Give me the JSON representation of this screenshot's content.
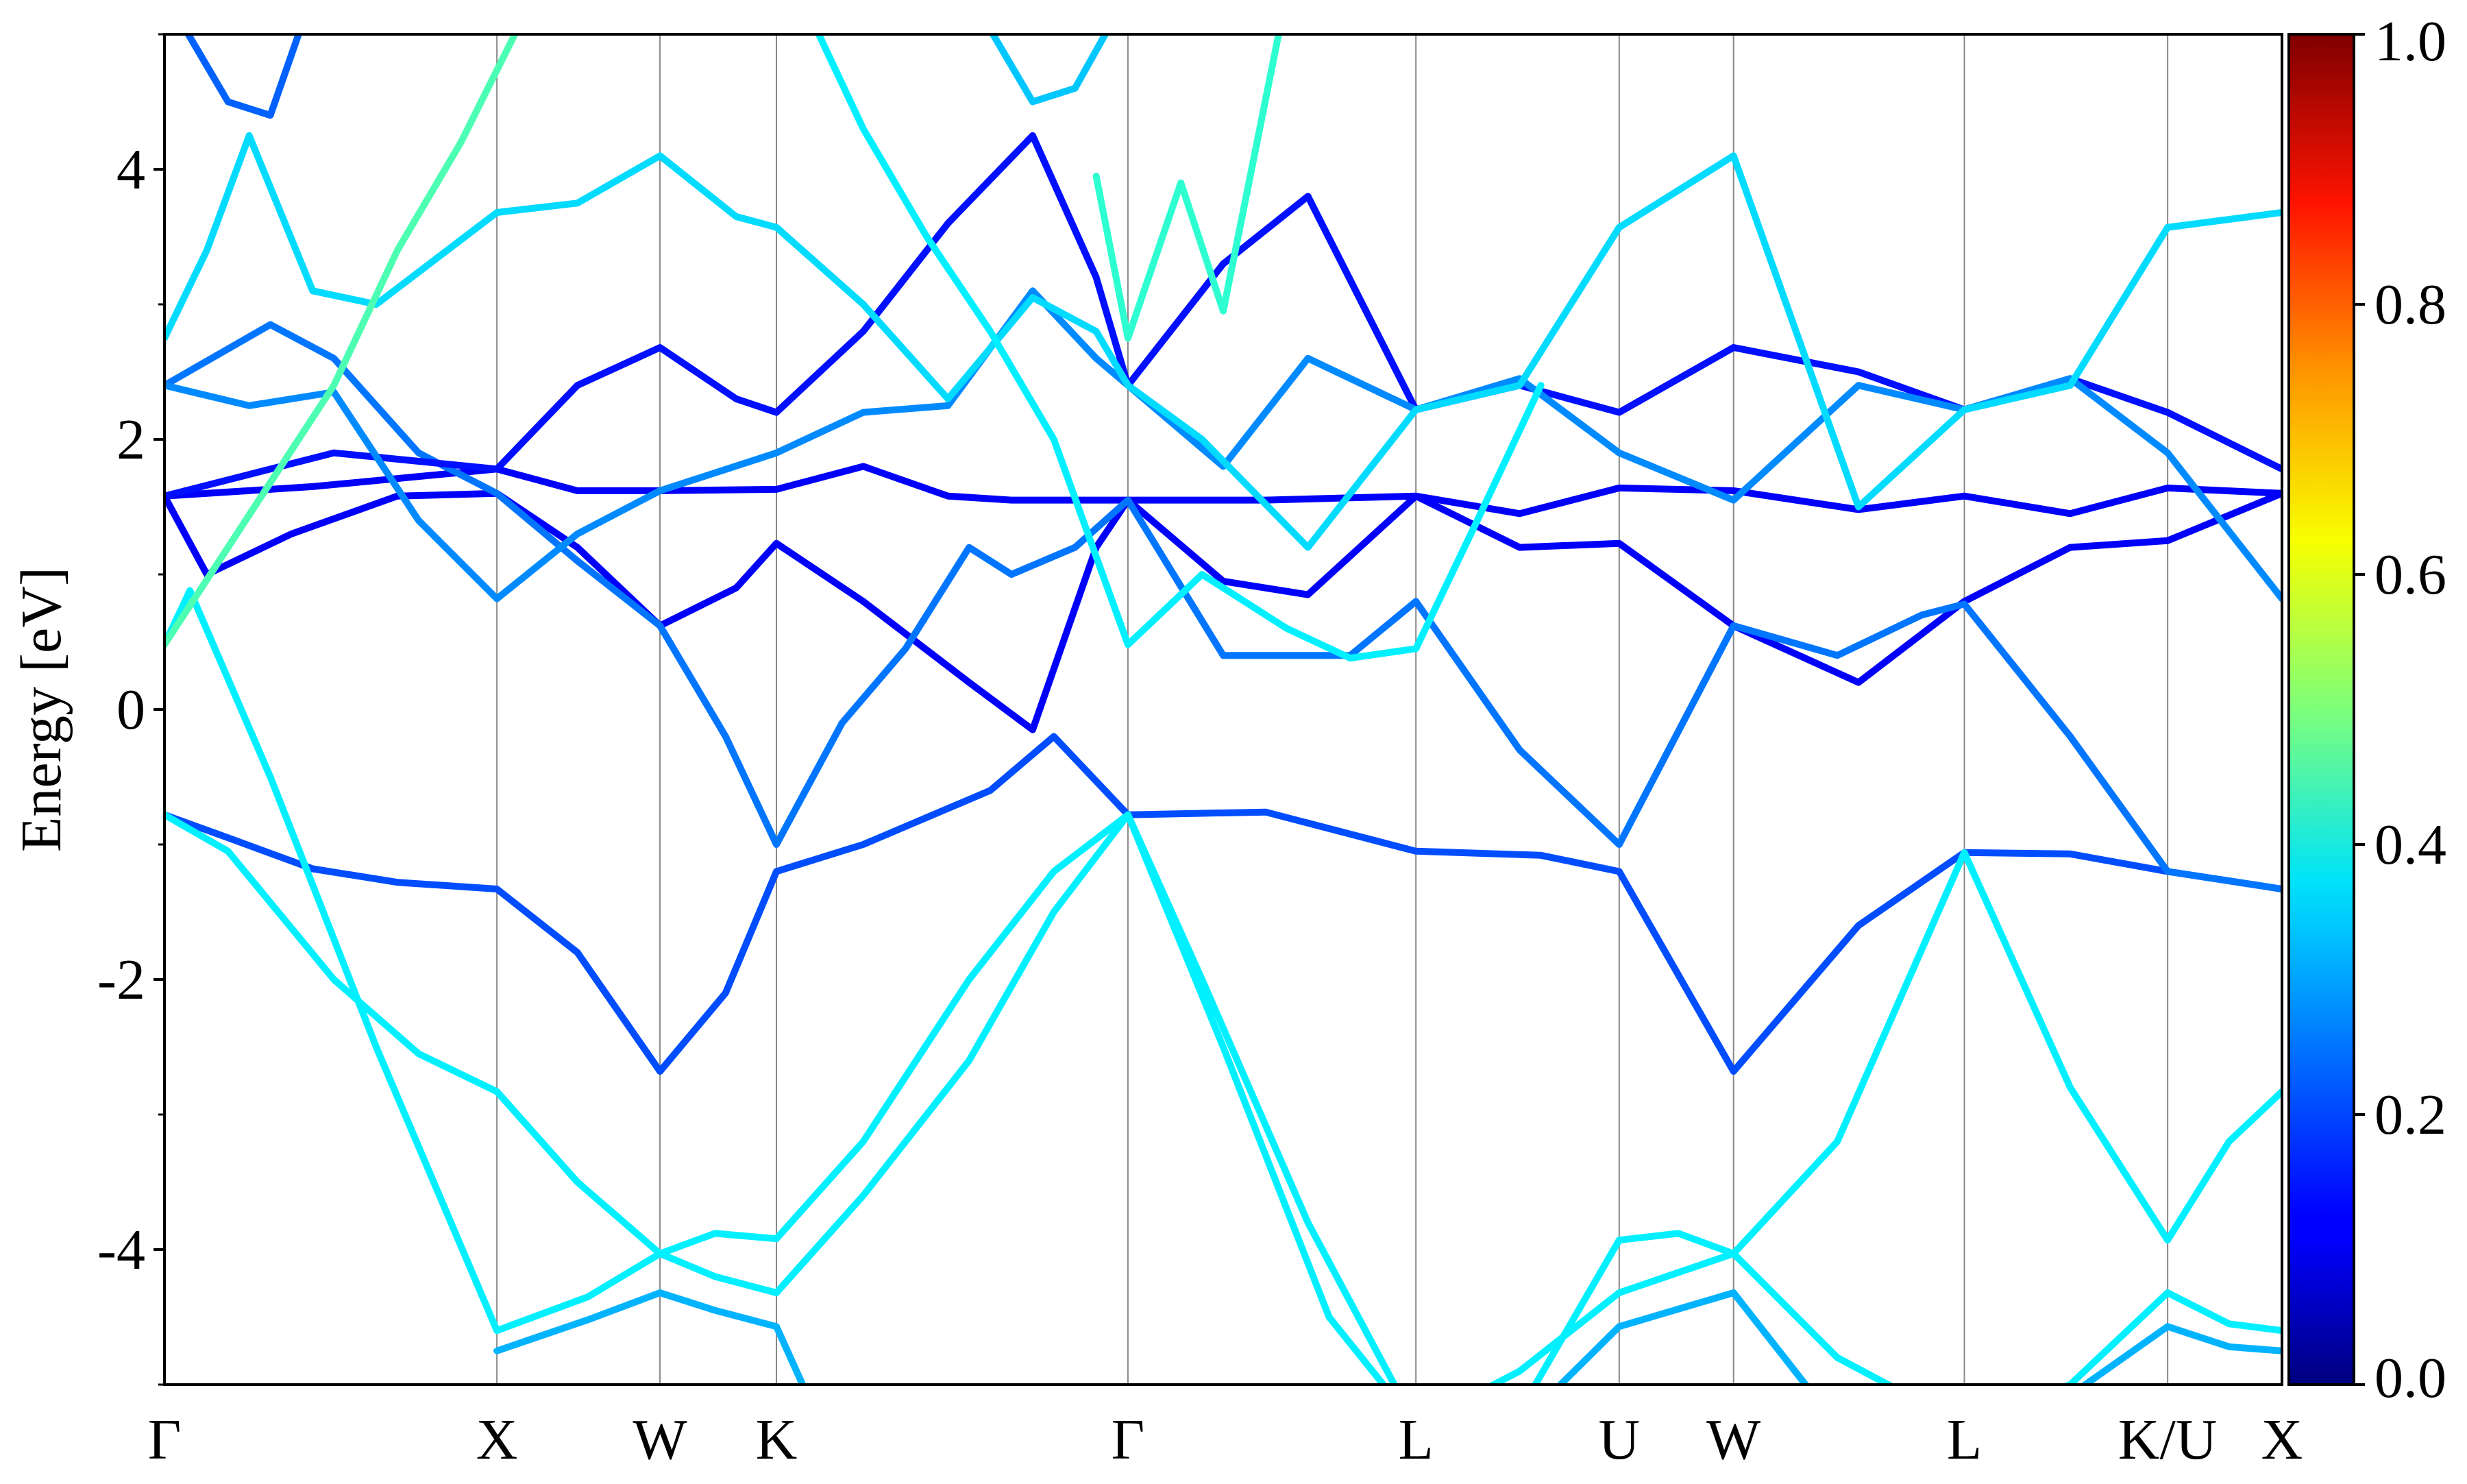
{
  "chart_data": {
    "type": "line",
    "title": "",
    "xlabel": "",
    "ylabel": "Energy [eV]",
    "ylim": [
      -5,
      5
    ],
    "grid": false,
    "legend": "none",
    "high_symbol_points": [
      {
        "label": "Γ",
        "k": 0.0
      },
      {
        "label": "X",
        "k": 0.157
      },
      {
        "label": "W",
        "k": 0.234
      },
      {
        "label": "K",
        "k": 0.289
      },
      {
        "label": "Γ",
        "k": 0.455
      },
      {
        "label": "L",
        "k": 0.591
      },
      {
        "label": "U",
        "k": 0.687
      },
      {
        "label": "W",
        "k": 0.741
      },
      {
        "label": "L",
        "k": 0.85
      },
      {
        "label": "K/U",
        "k": 0.946
      },
      {
        "label": "X",
        "k": 1.0
      }
    ],
    "y_ticks": [
      4,
      2,
      0,
      -2,
      -4
    ],
    "y_tick_labels": [
      "4",
      "2",
      "0",
      "-2",
      "-4"
    ],
    "colorbar": {
      "colormap": "jet",
      "range": [
        0.0,
        1.0
      ],
      "ticks": [
        1.0,
        0.8,
        0.6,
        0.4,
        0.2,
        0.0
      ],
      "tick_labels": [
        "1.0",
        "0.8",
        "0.6",
        "0.4",
        "0.2",
        "0.0"
      ]
    },
    "series": [
      {
        "w": 0.2,
        "points": [
          [
            0.0,
            -0.78
          ],
          [
            0.03,
            -0.95
          ],
          [
            0.07,
            -1.18
          ],
          [
            0.11,
            -1.28
          ],
          [
            0.157,
            -1.33
          ],
          [
            0.195,
            -1.8
          ],
          [
            0.234,
            -2.68
          ],
          [
            0.265,
            -2.1
          ],
          [
            0.289,
            -1.2
          ],
          [
            0.33,
            -1.0
          ],
          [
            0.39,
            -0.6
          ],
          [
            0.42,
            -0.2
          ],
          [
            0.455,
            -0.78
          ],
          [
            0.52,
            -0.76
          ],
          [
            0.591,
            -1.05
          ],
          [
            0.65,
            -1.08
          ],
          [
            0.687,
            -1.2
          ],
          [
            0.741,
            -2.68
          ],
          [
            0.8,
            -1.6
          ],
          [
            0.85,
            -1.06
          ],
          [
            0.9,
            -1.07
          ],
          [
            0.946,
            -1.2
          ],
          [
            1.0,
            -1.33
          ]
        ]
      },
      {
        "w": 0.36,
        "points": [
          [
            0.0,
            -0.78
          ],
          [
            0.03,
            -1.05
          ],
          [
            0.08,
            -2.0
          ],
          [
            0.12,
            -2.55
          ],
          [
            0.157,
            -2.83
          ],
          [
            0.195,
            -3.5
          ],
          [
            0.234,
            -4.03
          ],
          [
            0.26,
            -3.88
          ],
          [
            0.289,
            -3.92
          ],
          [
            0.33,
            -3.2
          ],
          [
            0.38,
            -2.0
          ],
          [
            0.42,
            -1.2
          ],
          [
            0.455,
            -0.78
          ],
          [
            0.49,
            -2.0
          ],
          [
            0.54,
            -3.8
          ],
          [
            0.591,
            -5.3
          ],
          [
            0.64,
            -5.2
          ],
          [
            0.687,
            -3.93
          ],
          [
            0.715,
            -3.88
          ],
          [
            0.741,
            -4.03
          ],
          [
            0.79,
            -3.2
          ],
          [
            0.85,
            -1.06
          ],
          [
            0.9,
            -2.8
          ],
          [
            0.946,
            -3.93
          ],
          [
            0.975,
            -3.2
          ],
          [
            1.0,
            -2.83
          ]
        ]
      },
      {
        "w": 0.36,
        "points": [
          [
            0.0,
            0.48
          ],
          [
            0.012,
            0.88
          ],
          [
            0.05,
            -0.5
          ],
          [
            0.1,
            -2.5
          ],
          [
            0.157,
            -4.6
          ],
          [
            0.2,
            -4.35
          ],
          [
            0.234,
            -4.03
          ],
          [
            0.26,
            -4.2
          ],
          [
            0.289,
            -4.32
          ],
          [
            0.33,
            -3.6
          ],
          [
            0.38,
            -2.6
          ],
          [
            0.42,
            -1.5
          ],
          [
            0.455,
            -0.78
          ],
          [
            0.5,
            -2.5
          ],
          [
            0.55,
            -4.5
          ],
          [
            0.591,
            -5.3
          ],
          [
            0.64,
            -4.9
          ],
          [
            0.687,
            -4.32
          ],
          [
            0.741,
            -4.03
          ],
          [
            0.79,
            -4.8
          ],
          [
            0.85,
            -5.3
          ],
          [
            0.9,
            -5.0
          ],
          [
            0.946,
            -4.32
          ],
          [
            0.975,
            -4.55
          ],
          [
            1.0,
            -4.6
          ]
        ]
      },
      {
        "w": 0.3,
        "points": [
          [
            0.157,
            -4.75
          ],
          [
            0.2,
            -4.52
          ],
          [
            0.234,
            -4.32
          ],
          [
            0.26,
            -4.45
          ],
          [
            0.289,
            -4.57
          ],
          [
            0.31,
            -5.3
          ]
        ]
      },
      {
        "w": 0.3,
        "points": [
          [
            0.64,
            -5.3
          ],
          [
            0.687,
            -4.57
          ],
          [
            0.741,
            -4.32
          ],
          [
            0.79,
            -5.3
          ]
        ]
      },
      {
        "w": 0.3,
        "points": [
          [
            0.88,
            -5.3
          ],
          [
            0.946,
            -4.57
          ],
          [
            0.975,
            -4.72
          ],
          [
            1.0,
            -4.75
          ]
        ]
      },
      {
        "w": 0.12,
        "points": [
          [
            0.0,
            1.58
          ],
          [
            0.07,
            1.65
          ],
          [
            0.157,
            1.78
          ],
          [
            0.195,
            1.62
          ],
          [
            0.234,
            1.62
          ],
          [
            0.289,
            1.63
          ],
          [
            0.33,
            1.8
          ],
          [
            0.37,
            1.58
          ],
          [
            0.4,
            1.55
          ],
          [
            0.455,
            1.55
          ],
          [
            0.5,
            0.95
          ],
          [
            0.54,
            0.85
          ],
          [
            0.591,
            1.58
          ],
          [
            0.64,
            1.45
          ],
          [
            0.687,
            1.64
          ],
          [
            0.741,
            1.62
          ],
          [
            0.8,
            1.48
          ],
          [
            0.85,
            1.58
          ],
          [
            0.9,
            1.45
          ],
          [
            0.946,
            1.64
          ],
          [
            1.0,
            1.6
          ]
        ]
      },
      {
        "w": 0.12,
        "points": [
          [
            0.0,
            1.58
          ],
          [
            0.02,
            1.0
          ],
          [
            0.06,
            1.3
          ],
          [
            0.11,
            1.58
          ],
          [
            0.157,
            1.6
          ],
          [
            0.195,
            1.2
          ],
          [
            0.234,
            0.62
          ],
          [
            0.27,
            0.9
          ],
          [
            0.289,
            1.23
          ],
          [
            0.33,
            0.8
          ],
          [
            0.38,
            0.2
          ],
          [
            0.41,
            -0.15
          ],
          [
            0.44,
            1.2
          ],
          [
            0.455,
            1.55
          ],
          [
            0.52,
            1.55
          ],
          [
            0.591,
            1.58
          ],
          [
            0.64,
            1.2
          ],
          [
            0.687,
            1.23
          ],
          [
            0.741,
            0.62
          ],
          [
            0.8,
            0.2
          ],
          [
            0.85,
            0.8
          ],
          [
            0.9,
            1.2
          ],
          [
            0.946,
            1.25
          ],
          [
            1.0,
            1.6
          ]
        ]
      },
      {
        "w": 0.24,
        "points": [
          [
            0.0,
            2.4
          ],
          [
            0.05,
            2.85
          ],
          [
            0.08,
            2.6
          ],
          [
            0.12,
            1.9
          ],
          [
            0.157,
            1.6
          ],
          [
            0.195,
            1.1
          ],
          [
            0.234,
            0.62
          ],
          [
            0.265,
            -0.2
          ],
          [
            0.289,
            -1.0
          ],
          [
            0.32,
            -0.1
          ],
          [
            0.35,
            0.45
          ],
          [
            0.38,
            1.2
          ],
          [
            0.4,
            1.0
          ],
          [
            0.43,
            1.2
          ],
          [
            0.455,
            1.55
          ],
          [
            0.5,
            0.4
          ],
          [
            0.56,
            0.4
          ],
          [
            0.591,
            0.8
          ],
          [
            0.64,
            -0.3
          ],
          [
            0.687,
            -1.0
          ],
          [
            0.741,
            0.62
          ],
          [
            0.79,
            0.4
          ],
          [
            0.83,
            0.7
          ],
          [
            0.85,
            0.78
          ],
          [
            0.9,
            -0.2
          ],
          [
            0.946,
            -1.2
          ],
          [
            1.0,
            -1.33
          ]
        ]
      },
      {
        "w": 0.14,
        "points": [
          [
            0.0,
            1.58
          ],
          [
            0.08,
            1.9
          ],
          [
            0.157,
            1.78
          ],
          [
            0.195,
            2.4
          ],
          [
            0.234,
            2.68
          ],
          [
            0.27,
            2.3
          ],
          [
            0.289,
            2.2
          ],
          [
            0.33,
            2.8
          ],
          [
            0.37,
            3.6
          ],
          [
            0.41,
            4.25
          ],
          [
            0.44,
            3.2
          ],
          [
            0.455,
            2.4
          ],
          [
            0.5,
            3.3
          ],
          [
            0.54,
            3.8
          ],
          [
            0.591,
            2.22
          ],
          [
            0.64,
            2.4
          ],
          [
            0.687,
            2.2
          ],
          [
            0.741,
            2.68
          ],
          [
            0.8,
            2.5
          ],
          [
            0.85,
            2.22
          ],
          [
            0.9,
            2.45
          ],
          [
            0.946,
            2.2
          ],
          [
            1.0,
            1.78
          ]
        ]
      },
      {
        "w": 0.26,
        "points": [
          [
            0.0,
            2.4
          ],
          [
            0.04,
            2.25
          ],
          [
            0.08,
            2.35
          ],
          [
            0.12,
            1.4
          ],
          [
            0.157,
            0.82
          ],
          [
            0.195,
            1.3
          ],
          [
            0.234,
            1.62
          ],
          [
            0.289,
            1.9
          ],
          [
            0.33,
            2.2
          ],
          [
            0.37,
            2.25
          ],
          [
            0.41,
            3.1
          ],
          [
            0.44,
            2.6
          ],
          [
            0.455,
            2.4
          ],
          [
            0.5,
            1.8
          ],
          [
            0.54,
            2.6
          ],
          [
            0.591,
            2.22
          ],
          [
            0.64,
            2.45
          ],
          [
            0.687,
            1.9
          ],
          [
            0.741,
            1.55
          ],
          [
            0.8,
            2.4
          ],
          [
            0.85,
            2.22
          ],
          [
            0.9,
            2.45
          ],
          [
            0.946,
            1.9
          ],
          [
            1.0,
            0.82
          ]
        ]
      },
      {
        "w": 0.34,
        "points": [
          [
            0.0,
            2.75
          ],
          [
            0.02,
            3.4
          ],
          [
            0.04,
            4.25
          ],
          [
            0.07,
            3.1
          ],
          [
            0.1,
            3.0
          ],
          [
            0.157,
            3.68
          ],
          [
            0.195,
            3.75
          ],
          [
            0.234,
            4.1
          ],
          [
            0.27,
            3.65
          ],
          [
            0.289,
            3.57
          ],
          [
            0.33,
            3.0
          ],
          [
            0.37,
            2.3
          ],
          [
            0.41,
            3.05
          ],
          [
            0.44,
            2.8
          ],
          [
            0.455,
            2.4
          ],
          [
            0.49,
            2.0
          ],
          [
            0.54,
            1.2
          ],
          [
            0.591,
            2.22
          ],
          [
            0.64,
            2.4
          ],
          [
            0.687,
            3.57
          ],
          [
            0.741,
            4.1
          ],
          [
            0.8,
            1.5
          ],
          [
            0.85,
            2.22
          ],
          [
            0.9,
            2.4
          ],
          [
            0.946,
            3.57
          ],
          [
            1.0,
            3.68
          ]
        ]
      },
      {
        "w": 0.45,
        "points": [
          [
            0.0,
            0.48
          ],
          [
            0.03,
            1.2
          ],
          [
            0.08,
            2.4
          ],
          [
            0.11,
            3.4
          ],
          [
            0.14,
            4.2
          ],
          [
            0.175,
            5.3
          ]
        ]
      },
      {
        "w": 0.36,
        "points": [
          [
            0.3,
            5.3
          ],
          [
            0.33,
            4.3
          ],
          [
            0.36,
            3.5
          ],
          [
            0.39,
            2.8
          ],
          [
            0.42,
            2.0
          ],
          [
            0.455,
            0.48
          ],
          [
            0.49,
            1.0
          ],
          [
            0.53,
            0.6
          ],
          [
            0.56,
            0.38
          ],
          [
            0.591,
            0.45
          ],
          [
            0.62,
            1.4
          ],
          [
            0.65,
            2.4
          ]
        ]
      },
      {
        "w": 0.22,
        "points": [
          [
            0.0,
            5.3
          ],
          [
            0.03,
            4.5
          ],
          [
            0.05,
            4.4
          ],
          [
            0.07,
            5.3
          ]
        ]
      },
      {
        "w": 0.32,
        "points": [
          [
            0.38,
            5.3
          ],
          [
            0.41,
            4.5
          ],
          [
            0.43,
            4.6
          ],
          [
            0.455,
            5.3
          ]
        ]
      },
      {
        "w": 0.42,
        "points": [
          [
            0.44,
            3.95
          ],
          [
            0.455,
            2.75
          ],
          [
            0.48,
            3.9
          ],
          [
            0.5,
            2.95
          ],
          [
            0.53,
            5.3
          ]
        ]
      }
    ]
  }
}
